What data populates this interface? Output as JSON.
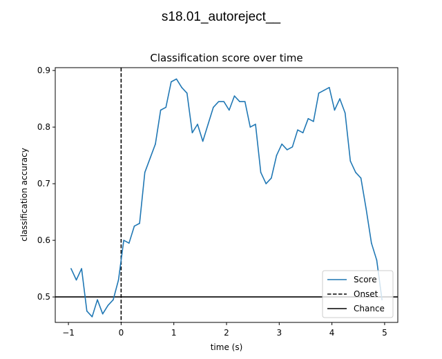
{
  "figure": {
    "suptitle": "s18.01_autoreject__"
  },
  "chart_data": {
    "type": "line",
    "title": "Classification score over time",
    "xlabel": "time (s)",
    "ylabel": "classification accuracy",
    "xlim": [
      -1.25,
      5.25
    ],
    "ylim": [
      0.455,
      0.905
    ],
    "xticks": [
      -1,
      0,
      1,
      2,
      3,
      4,
      5
    ],
    "xtick_labels": [
      "−1",
      "0",
      "1",
      "2",
      "3",
      "4",
      "5"
    ],
    "yticks": [
      0.5,
      0.6,
      0.7,
      0.8,
      0.9
    ],
    "ytick_labels": [
      "0.5",
      "0.6",
      "0.7",
      "0.8",
      "0.9"
    ],
    "grid": false,
    "legend_position": "lower-right",
    "series": [
      {
        "name": "Score",
        "color": "#1f77b4",
        "x": [
          -0.95,
          -0.85,
          -0.75,
          -0.65,
          -0.55,
          -0.45,
          -0.35,
          -0.25,
          -0.15,
          -0.05,
          0.05,
          0.15,
          0.25,
          0.35,
          0.45,
          0.55,
          0.65,
          0.75,
          0.85,
          0.95,
          1.05,
          1.15,
          1.25,
          1.35,
          1.45,
          1.55,
          1.65,
          1.75,
          1.85,
          1.95,
          2.05,
          2.15,
          2.25,
          2.35,
          2.45,
          2.55,
          2.65,
          2.75,
          2.85,
          2.95,
          3.05,
          3.15,
          3.25,
          3.35,
          3.45,
          3.55,
          3.65,
          3.75,
          3.85,
          3.95,
          4.05,
          4.15,
          4.25,
          4.35,
          4.45,
          4.55,
          4.65,
          4.75,
          4.85,
          4.95
        ],
        "y": [
          0.55,
          0.53,
          0.55,
          0.475,
          0.465,
          0.495,
          0.47,
          0.485,
          0.495,
          0.53,
          0.6,
          0.595,
          0.625,
          0.63,
          0.72,
          0.745,
          0.77,
          0.83,
          0.835,
          0.88,
          0.885,
          0.87,
          0.86,
          0.79,
          0.805,
          0.775,
          0.805,
          0.835,
          0.845,
          0.845,
          0.83,
          0.855,
          0.845,
          0.845,
          0.8,
          0.805,
          0.72,
          0.7,
          0.71,
          0.75,
          0.77,
          0.76,
          0.765,
          0.795,
          0.79,
          0.815,
          0.81,
          0.86,
          0.865,
          0.87,
          0.83,
          0.85,
          0.825,
          0.74,
          0.72,
          0.71,
          0.655,
          0.595,
          0.565,
          0.495
        ]
      }
    ],
    "reference_lines": [
      {
        "name": "Onset",
        "orientation": "vertical",
        "value": 0,
        "style": "dashed",
        "color": "#000000"
      },
      {
        "name": "Chance",
        "orientation": "horizontal",
        "value": 0.5,
        "style": "solid",
        "color": "#000000"
      }
    ]
  }
}
